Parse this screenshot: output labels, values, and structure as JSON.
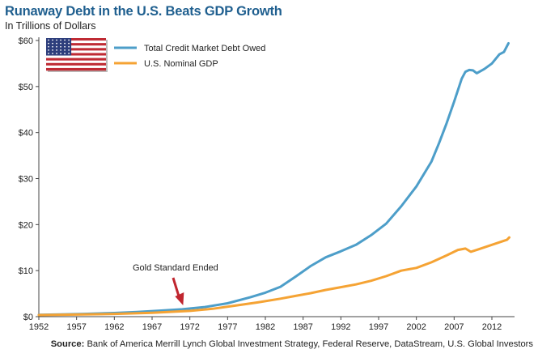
{
  "chart_data": {
    "type": "line",
    "title": "Runaway Debt in the U.S. Beats GDP Growth",
    "subtitle": "In Trillions of Dollars",
    "xlabel": "",
    "ylabel": "",
    "xlim": [
      1952,
      2015
    ],
    "ylim": [
      0,
      60
    ],
    "x_ticks": [
      "1952",
      "1957",
      "1962",
      "1967",
      "1972",
      "1977",
      "1982",
      "1987",
      "1992",
      "1997",
      "2002",
      "2007",
      "2012"
    ],
    "y_ticks": [
      "$0",
      "$10",
      "$20",
      "$30",
      "$40",
      "$50",
      "$60"
    ],
    "grid": "none",
    "legend_position": "top-left",
    "series": [
      {
        "name": "Total Credit Market Debt Owed",
        "color": "#4d9ec9",
        "points": [
          [
            1952,
            0.4
          ],
          [
            1955,
            0.5
          ],
          [
            1958,
            0.6
          ],
          [
            1962,
            0.8
          ],
          [
            1965,
            1.0
          ],
          [
            1968,
            1.3
          ],
          [
            1971,
            1.6
          ],
          [
            1974,
            2.1
          ],
          [
            1977,
            2.9
          ],
          [
            1980,
            4.2
          ],
          [
            1982,
            5.2
          ],
          [
            1984,
            6.5
          ],
          [
            1986,
            8.7
          ],
          [
            1988,
            11.0
          ],
          [
            1990,
            12.9
          ],
          [
            1992,
            14.2
          ],
          [
            1994,
            15.6
          ],
          [
            1996,
            17.7
          ],
          [
            1998,
            20.2
          ],
          [
            2000,
            24.0
          ],
          [
            2002,
            28.3
          ],
          [
            2004,
            33.7
          ],
          [
            2005,
            37.7
          ],
          [
            2006,
            42.0
          ],
          [
            2007,
            46.7
          ],
          [
            2008,
            51.7
          ],
          [
            2008.5,
            53.2
          ],
          [
            2009,
            53.6
          ],
          [
            2009.5,
            53.5
          ],
          [
            2010,
            52.9
          ],
          [
            2011,
            53.8
          ],
          [
            2012,
            55.0
          ],
          [
            2013,
            57.0
          ],
          [
            2013.6,
            57.5
          ],
          [
            2014.2,
            59.4
          ]
        ]
      },
      {
        "name": "U.S. Nominal GDP",
        "color": "#f5a334",
        "points": [
          [
            1952,
            0.35
          ],
          [
            1957,
            0.45
          ],
          [
            1962,
            0.6
          ],
          [
            1967,
            0.85
          ],
          [
            1972,
            1.25
          ],
          [
            1975,
            1.7
          ],
          [
            1978,
            2.4
          ],
          [
            1981,
            3.1
          ],
          [
            1984,
            3.9
          ],
          [
            1986,
            4.5
          ],
          [
            1988,
            5.1
          ],
          [
            1990,
            5.8
          ],
          [
            1992,
            6.4
          ],
          [
            1994,
            7.0
          ],
          [
            1996,
            7.8
          ],
          [
            1998,
            8.8
          ],
          [
            2000,
            10.0
          ],
          [
            2002,
            10.6
          ],
          [
            2004,
            11.8
          ],
          [
            2006,
            13.3
          ],
          [
            2007.5,
            14.5
          ],
          [
            2008.5,
            14.8
          ],
          [
            2009.2,
            14.1
          ],
          [
            2010,
            14.5
          ],
          [
            2012,
            15.6
          ],
          [
            2014,
            16.7
          ],
          [
            2014.3,
            17.2
          ]
        ]
      }
    ],
    "annotations": [
      {
        "text": "Gold Standard Ended",
        "x": 1971
      }
    ],
    "flag_icon": "us-flag-icon"
  },
  "source": {
    "label": "Source:",
    "text": "Bank of America Merrill Lynch Global Investment Strategy, Federal Reserve, DataStream, U.S. Global Investors"
  }
}
